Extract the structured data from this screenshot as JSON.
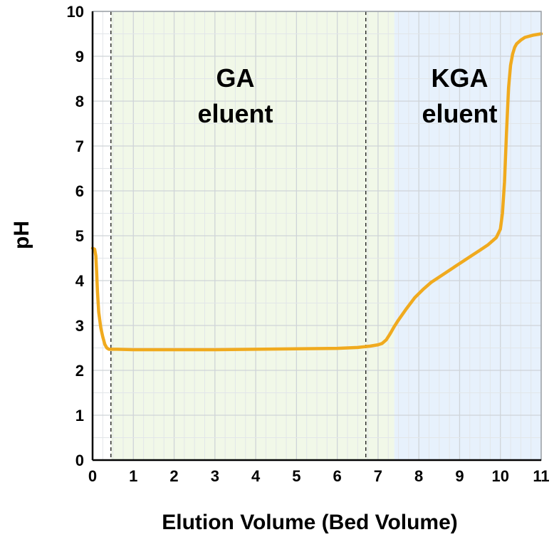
{
  "chart_data": {
    "type": "line",
    "title": "",
    "xlabel": "Elution Volume (Bed Volume)",
    "ylabel": "pH",
    "xlim": [
      0,
      11
    ],
    "ylim": [
      0,
      10
    ],
    "xticks": [
      "0",
      "1",
      "2",
      "3",
      "4",
      "5",
      "6",
      "7",
      "8",
      "9",
      "10",
      "11"
    ],
    "yticks": [
      "0",
      "1",
      "2",
      "3",
      "4",
      "5",
      "6",
      "7",
      "8",
      "9",
      "10"
    ],
    "grid": true,
    "legend": "none",
    "regions": [
      {
        "label_line1": "GA",
        "label_line2": "eluent",
        "x_start": 0.45,
        "x_end": 7.4,
        "color": "#f1f8e8"
      },
      {
        "label_line1": "KGA",
        "label_line2": "eluent",
        "x_start": 7.4,
        "x_end": 11,
        "color": "#e7f1fc"
      }
    ],
    "vlines": [
      0.45,
      6.7
    ],
    "series": [
      {
        "color": "#f0aa1e",
        "x": [
          0,
          0.05,
          0.08,
          0.1,
          0.12,
          0.15,
          0.2,
          0.25,
          0.3,
          0.35,
          0.4,
          0.45,
          0.6,
          1.0,
          2.0,
          3.0,
          4.0,
          5.0,
          6.0,
          6.5,
          6.8,
          7.0,
          7.1,
          7.2,
          7.3,
          7.4,
          7.5,
          7.7,
          7.9,
          8.1,
          8.3,
          8.5,
          8.7,
          8.9,
          9.1,
          9.3,
          9.5,
          9.7,
          9.9,
          10.0,
          10.05,
          10.1,
          10.15,
          10.2,
          10.25,
          10.3,
          10.35,
          10.4,
          10.5,
          10.6,
          10.8,
          11.0
        ],
        "y": [
          4.72,
          4.7,
          4.55,
          4.2,
          3.75,
          3.3,
          2.95,
          2.75,
          2.58,
          2.5,
          2.47,
          2.47,
          2.47,
          2.46,
          2.46,
          2.46,
          2.47,
          2.48,
          2.49,
          2.51,
          2.54,
          2.57,
          2.6,
          2.68,
          2.82,
          2.98,
          3.12,
          3.38,
          3.62,
          3.8,
          3.96,
          4.08,
          4.2,
          4.32,
          4.44,
          4.56,
          4.68,
          4.8,
          4.96,
          5.15,
          5.5,
          6.2,
          7.3,
          8.3,
          8.8,
          9.05,
          9.2,
          9.28,
          9.36,
          9.42,
          9.47,
          9.5
        ]
      }
    ]
  }
}
